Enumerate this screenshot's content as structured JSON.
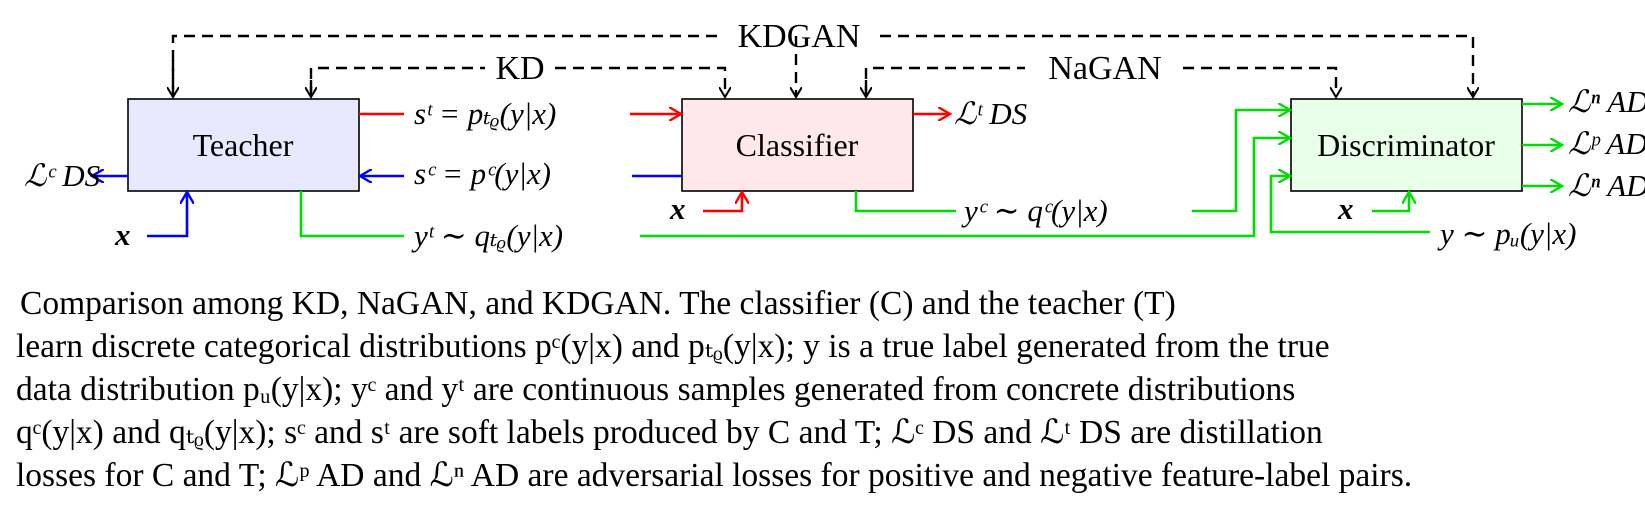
{
  "diagram": {
    "labels": {
      "kdgan": "KDGAN",
      "kd": "KD",
      "nagan": "NaGAN"
    },
    "boxes": {
      "teacher": "Teacher",
      "classifier": "Classifier",
      "discriminator": "Discriminator"
    },
    "edges": {
      "soft_teacher": "sᵗ = pₜᵨ(y|x)",
      "soft_classifier": "sᶜ = pᶜ(y|x)",
      "sample_teacher": "yᵗ ∼ qₜᵨ(y|x)",
      "sample_classifier": "yᶜ ∼ qᶜ(y|x)",
      "true_label": "y ∼ pᵤ(y|x)",
      "input_teacher": "x",
      "input_classifier": "x",
      "input_discriminator": "x"
    },
    "losses": {
      "teacher_ds": "ℒᶜ DS",
      "classifier_ds": "ℒᵗ DS",
      "ad_n_top": "ℒⁿ AD",
      "ad_p": "ℒᵖ AD",
      "ad_n_bottom": "ℒⁿ AD"
    },
    "colors": {
      "teacher_fill": "#e8e8ff",
      "classifier_fill": "#ffe8ec",
      "discriminator_fill": "#e8ffe8",
      "red": "#ff0000",
      "blue": "#0000ff",
      "green": "#00dd00"
    }
  },
  "caption": {
    "lines": [
      "Comparison among KD, NaGAN, and KDGAN. The classifier (C) and the teacher (T)",
      "learn discrete categorical distributions pᶜ(y|x) and pₜᵨ(y|x); y is a true label generated from the true",
      "data distribution pᵤ(y|x); yᶜ and yᵗ are continuous samples generated from concrete distributions",
      "qᶜ(y|x) and qₜᵨ(y|x); sᶜ and sᵗ are soft labels produced by C and T; ℒᶜ DS and ℒᵗ DS are distillation",
      "losses for C and T; ℒᵖ AD and ℒⁿ AD are adversarial losses for positive and negative feature-label pairs."
    ]
  }
}
